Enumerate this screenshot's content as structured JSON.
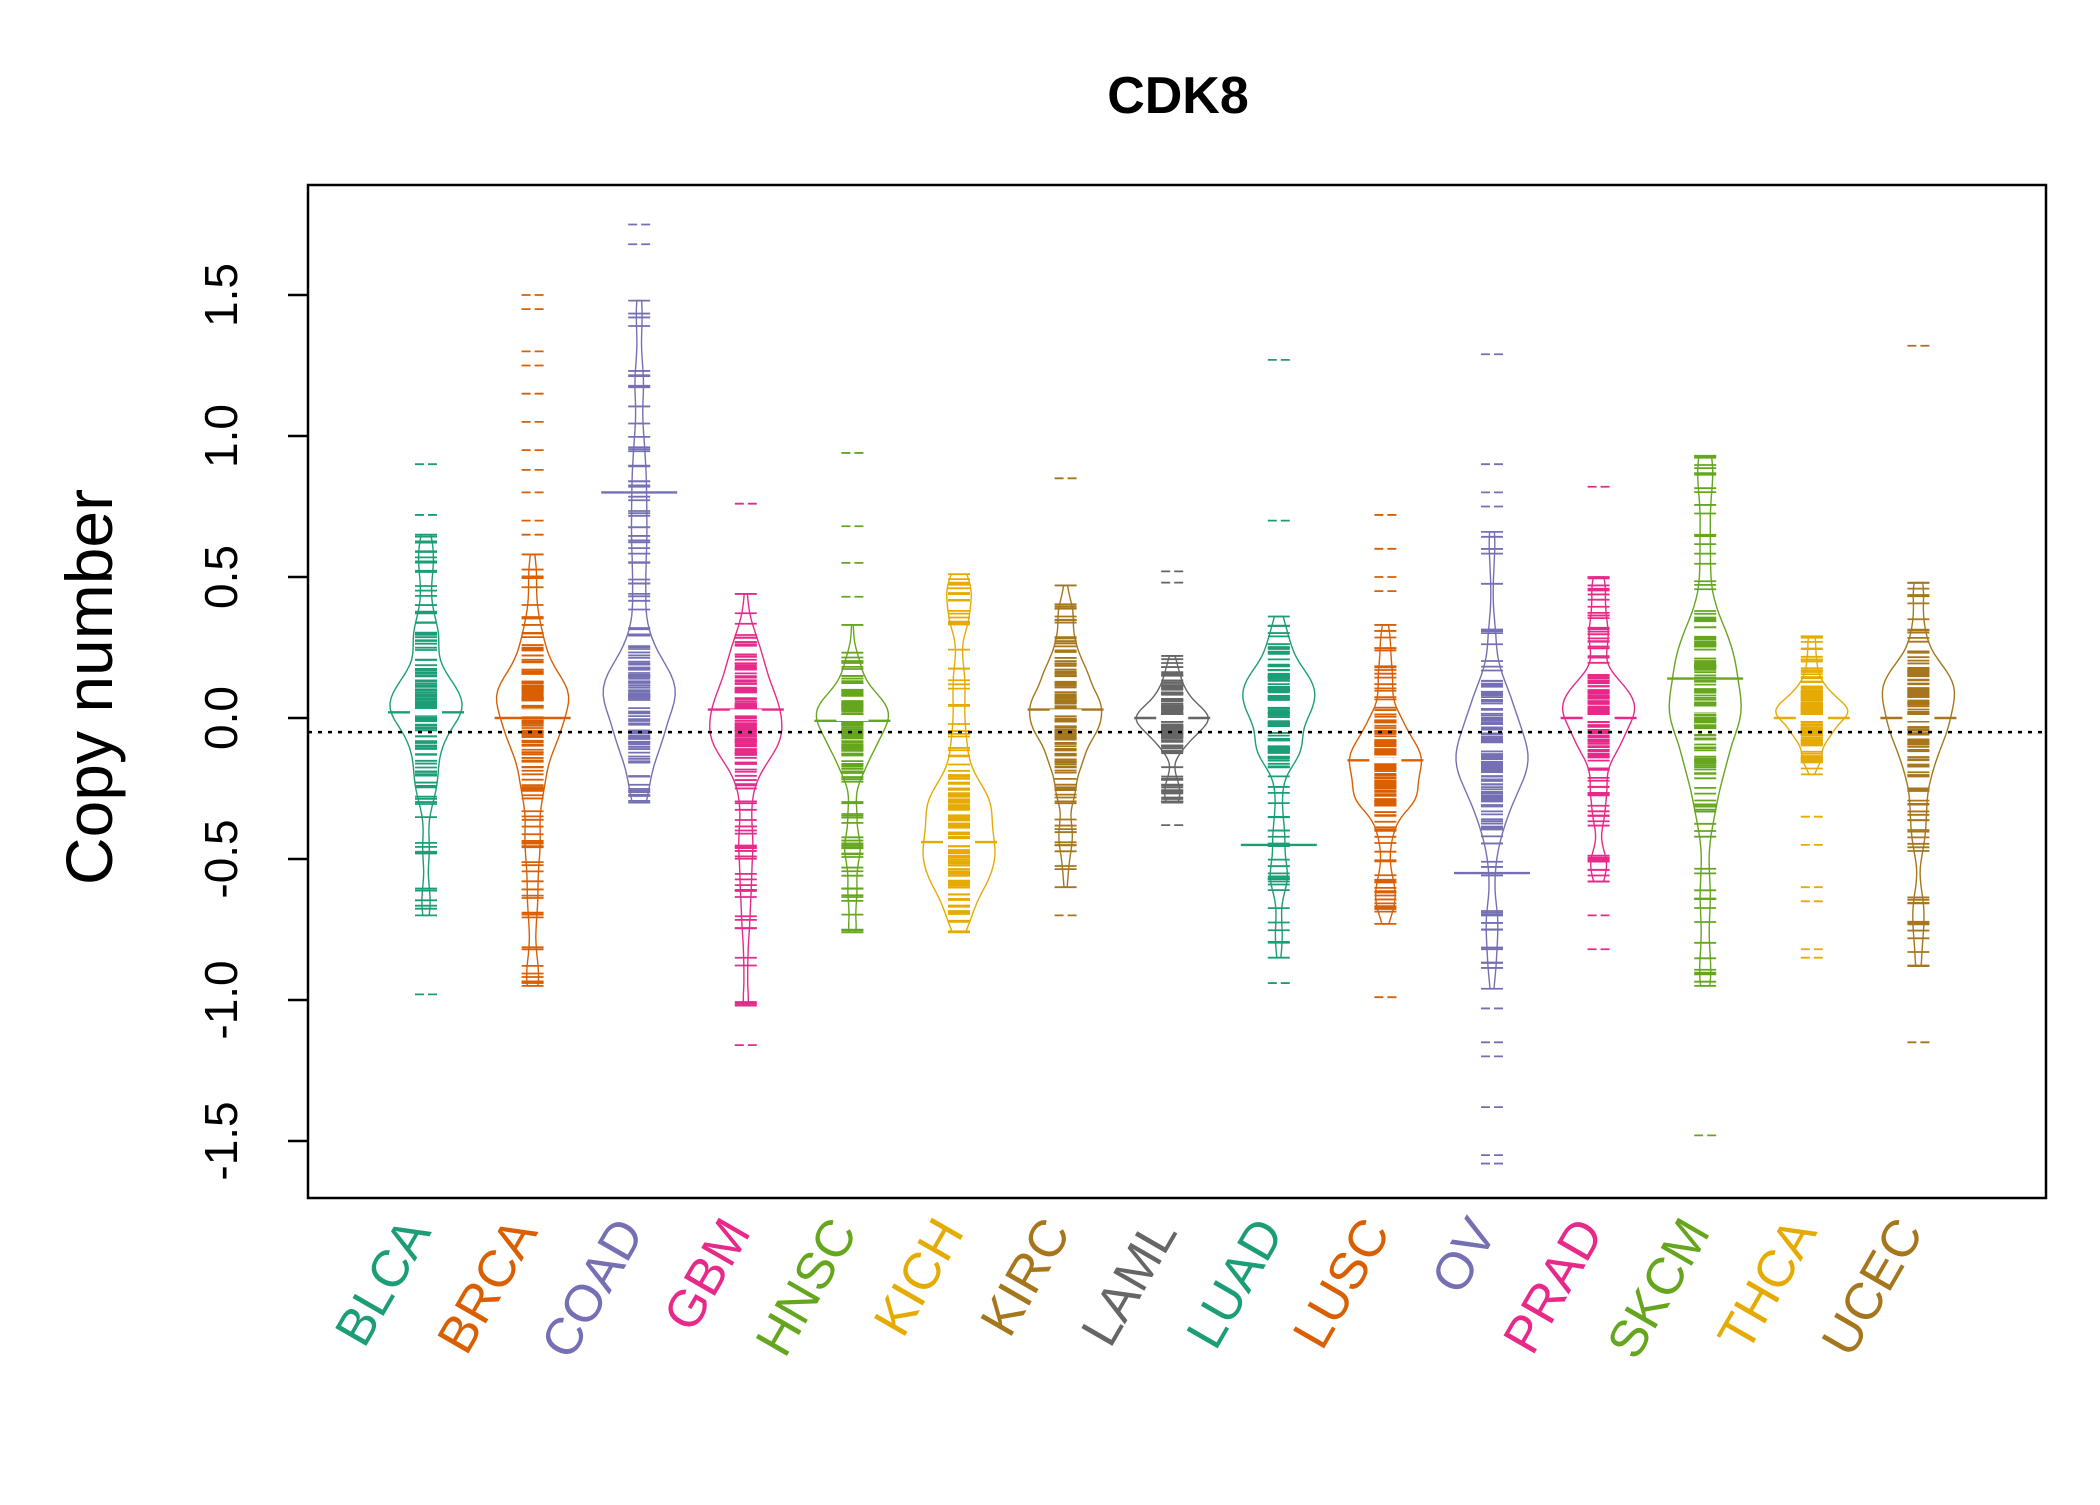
{
  "chart_data": {
    "type": "beanplot",
    "title": "CDK8",
    "xlabel": "",
    "ylabel": "Copy number",
    "ylim": [
      -1.7,
      1.88
    ],
    "yticks": [
      -1.5,
      -1.0,
      -0.5,
      0.0,
      0.5,
      1.0,
      1.5
    ],
    "ytick_labels": [
      "-1.5",
      "-1.0",
      "-0.5",
      "0.0",
      "0.5",
      "1.0",
      "1.5"
    ],
    "reference_line": -0.05,
    "grid": false,
    "legend": "none",
    "categories": [
      "BLCA",
      "BRCA",
      "COAD",
      "GBM",
      "HNSC",
      "KICH",
      "KIRC",
      "LAML",
      "LUAD",
      "LUSC",
      "OV",
      "PRAD",
      "SKCM",
      "THCA",
      "UCEC"
    ],
    "colors": [
      "#1B9E77",
      "#D95F02",
      "#7570B3",
      "#E7298A",
      "#66A61E",
      "#E6AB02",
      "#A6761D",
      "#666666",
      "#1B9E77",
      "#D95F02",
      "#7570B3",
      "#E7298A",
      "#66A61E",
      "#E6AB02",
      "#A6761D"
    ],
    "series": [
      {
        "name": "BLCA",
        "min": -0.7,
        "max": 0.65,
        "median": 0.02,
        "mean": 0.02,
        "outliers": [
          0.9,
          0.72,
          -0.98
        ]
      },
      {
        "name": "BRCA",
        "min": -0.95,
        "max": 0.58,
        "median": 0.02,
        "mean": 0.0,
        "outliers": [
          1.5,
          1.45,
          1.3,
          1.25,
          1.15,
          1.05,
          0.95,
          0.88,
          0.8,
          0.7,
          0.65
        ]
      },
      {
        "name": "COAD",
        "min": -0.3,
        "max": 1.48,
        "median": 0.05,
        "mean": 0.8,
        "outliers": [
          1.75,
          1.68
        ]
      },
      {
        "name": "GBM",
        "min": -1.02,
        "max": 0.44,
        "median": 0.02,
        "mean": 0.03,
        "outliers": [
          0.76,
          -1.16
        ]
      },
      {
        "name": "HNSC",
        "min": -0.76,
        "max": 0.33,
        "median": 0.0,
        "mean": -0.01,
        "outliers": [
          0.94,
          0.68,
          0.55,
          0.43
        ]
      },
      {
        "name": "KICH",
        "min": -0.76,
        "max": 0.51,
        "median": -0.44,
        "mean": -0.44,
        "outliers": []
      },
      {
        "name": "KIRC",
        "min": -0.6,
        "max": 0.47,
        "median": 0.02,
        "mean": 0.03,
        "outliers": [
          0.85,
          -0.7
        ]
      },
      {
        "name": "LAML",
        "min": -0.3,
        "max": 0.22,
        "median": 0.0,
        "mean": 0.0,
        "outliers": [
          0.52,
          0.48,
          -0.38
        ]
      },
      {
        "name": "LUAD",
        "min": -0.85,
        "max": 0.36,
        "median": 0.05,
        "mean": -0.45,
        "outliers": [
          1.27,
          0.7,
          -0.94
        ]
      },
      {
        "name": "LUSC",
        "min": -0.73,
        "max": 0.33,
        "median": -0.15,
        "mean": -0.15,
        "outliers": [
          0.72,
          0.6,
          0.5,
          0.45,
          -0.99
        ]
      },
      {
        "name": "OV",
        "min": -0.96,
        "max": 0.66,
        "median": -0.1,
        "mean": -0.55,
        "outliers": [
          1.29,
          0.9,
          0.8,
          0.75,
          -1.03,
          -1.15,
          -1.2,
          -1.38,
          -1.55,
          -1.58
        ]
      },
      {
        "name": "PRAD",
        "min": -0.58,
        "max": 0.5,
        "median": 0.0,
        "mean": 0.0,
        "outliers": [
          0.82,
          -0.7,
          -0.82
        ]
      },
      {
        "name": "SKCM",
        "min": -0.95,
        "max": 0.93,
        "median": 0.03,
        "mean": 0.14,
        "outliers": [
          -1.48
        ]
      },
      {
        "name": "THCA",
        "min": -0.2,
        "max": 0.29,
        "median": 0.0,
        "mean": 0.0,
        "outliers": [
          -0.35,
          -0.45,
          -0.6,
          -0.65,
          -0.82,
          -0.85
        ]
      },
      {
        "name": "UCEC",
        "min": -0.88,
        "max": 0.48,
        "median": 0.0,
        "mean": 0.0,
        "outliers": [
          1.32,
          -1.15
        ]
      }
    ]
  }
}
